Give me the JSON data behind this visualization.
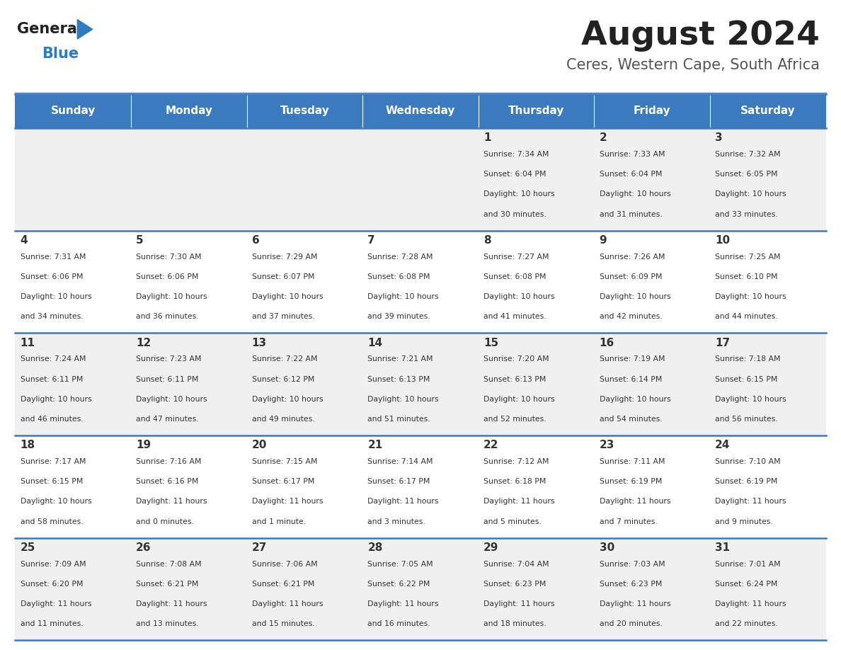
{
  "title": "August 2024",
  "subtitle": "Ceres, Western Cape, South Africa",
  "days_of_week": [
    "Sunday",
    "Monday",
    "Tuesday",
    "Wednesday",
    "Thursday",
    "Friday",
    "Saturday"
  ],
  "header_bg": "#3a7abf",
  "header_text": "#ffffff",
  "row_bg_even": "#f0f0f0",
  "row_bg_odd": "#ffffff",
  "cell_text": "#333333",
  "divider_color": "#3a7abf",
  "title_color": "#222222",
  "subtitle_color": "#555555",
  "logo_general_color": "#222222",
  "logo_blue_color": "#2e7cbf",
  "calendar": [
    [
      null,
      null,
      null,
      null,
      {
        "day": 1,
        "sunrise": "7:34 AM",
        "sunset": "6:04 PM",
        "daylight": "10 hours and 30 minutes."
      },
      {
        "day": 2,
        "sunrise": "7:33 AM",
        "sunset": "6:04 PM",
        "daylight": "10 hours and 31 minutes."
      },
      {
        "day": 3,
        "sunrise": "7:32 AM",
        "sunset": "6:05 PM",
        "daylight": "10 hours and 33 minutes."
      }
    ],
    [
      {
        "day": 4,
        "sunrise": "7:31 AM",
        "sunset": "6:06 PM",
        "daylight": "10 hours and 34 minutes."
      },
      {
        "day": 5,
        "sunrise": "7:30 AM",
        "sunset": "6:06 PM",
        "daylight": "10 hours and 36 minutes."
      },
      {
        "day": 6,
        "sunrise": "7:29 AM",
        "sunset": "6:07 PM",
        "daylight": "10 hours and 37 minutes."
      },
      {
        "day": 7,
        "sunrise": "7:28 AM",
        "sunset": "6:08 PM",
        "daylight": "10 hours and 39 minutes."
      },
      {
        "day": 8,
        "sunrise": "7:27 AM",
        "sunset": "6:08 PM",
        "daylight": "10 hours and 41 minutes."
      },
      {
        "day": 9,
        "sunrise": "7:26 AM",
        "sunset": "6:09 PM",
        "daylight": "10 hours and 42 minutes."
      },
      {
        "day": 10,
        "sunrise": "7:25 AM",
        "sunset": "6:10 PM",
        "daylight": "10 hours and 44 minutes."
      }
    ],
    [
      {
        "day": 11,
        "sunrise": "7:24 AM",
        "sunset": "6:11 PM",
        "daylight": "10 hours and 46 minutes."
      },
      {
        "day": 12,
        "sunrise": "7:23 AM",
        "sunset": "6:11 PM",
        "daylight": "10 hours and 47 minutes."
      },
      {
        "day": 13,
        "sunrise": "7:22 AM",
        "sunset": "6:12 PM",
        "daylight": "10 hours and 49 minutes."
      },
      {
        "day": 14,
        "sunrise": "7:21 AM",
        "sunset": "6:13 PM",
        "daylight": "10 hours and 51 minutes."
      },
      {
        "day": 15,
        "sunrise": "7:20 AM",
        "sunset": "6:13 PM",
        "daylight": "10 hours and 52 minutes."
      },
      {
        "day": 16,
        "sunrise": "7:19 AM",
        "sunset": "6:14 PM",
        "daylight": "10 hours and 54 minutes."
      },
      {
        "day": 17,
        "sunrise": "7:18 AM",
        "sunset": "6:15 PM",
        "daylight": "10 hours and 56 minutes."
      }
    ],
    [
      {
        "day": 18,
        "sunrise": "7:17 AM",
        "sunset": "6:15 PM",
        "daylight": "10 hours and 58 minutes."
      },
      {
        "day": 19,
        "sunrise": "7:16 AM",
        "sunset": "6:16 PM",
        "daylight": "11 hours and 0 minutes."
      },
      {
        "day": 20,
        "sunrise": "7:15 AM",
        "sunset": "6:17 PM",
        "daylight": "11 hours and 1 minute."
      },
      {
        "day": 21,
        "sunrise": "7:14 AM",
        "sunset": "6:17 PM",
        "daylight": "11 hours and 3 minutes."
      },
      {
        "day": 22,
        "sunrise": "7:12 AM",
        "sunset": "6:18 PM",
        "daylight": "11 hours and 5 minutes."
      },
      {
        "day": 23,
        "sunrise": "7:11 AM",
        "sunset": "6:19 PM",
        "daylight": "11 hours and 7 minutes."
      },
      {
        "day": 24,
        "sunrise": "7:10 AM",
        "sunset": "6:19 PM",
        "daylight": "11 hours and 9 minutes."
      }
    ],
    [
      {
        "day": 25,
        "sunrise": "7:09 AM",
        "sunset": "6:20 PM",
        "daylight": "11 hours and 11 minutes."
      },
      {
        "day": 26,
        "sunrise": "7:08 AM",
        "sunset": "6:21 PM",
        "daylight": "11 hours and 13 minutes."
      },
      {
        "day": 27,
        "sunrise": "7:06 AM",
        "sunset": "6:21 PM",
        "daylight": "11 hours and 15 minutes."
      },
      {
        "day": 28,
        "sunrise": "7:05 AM",
        "sunset": "6:22 PM",
        "daylight": "11 hours and 16 minutes."
      },
      {
        "day": 29,
        "sunrise": "7:04 AM",
        "sunset": "6:23 PM",
        "daylight": "11 hours and 18 minutes."
      },
      {
        "day": 30,
        "sunrise": "7:03 AM",
        "sunset": "6:23 PM",
        "daylight": "11 hours and 20 minutes."
      },
      {
        "day": 31,
        "sunrise": "7:01 AM",
        "sunset": "6:24 PM",
        "daylight": "11 hours and 22 minutes."
      }
    ]
  ]
}
